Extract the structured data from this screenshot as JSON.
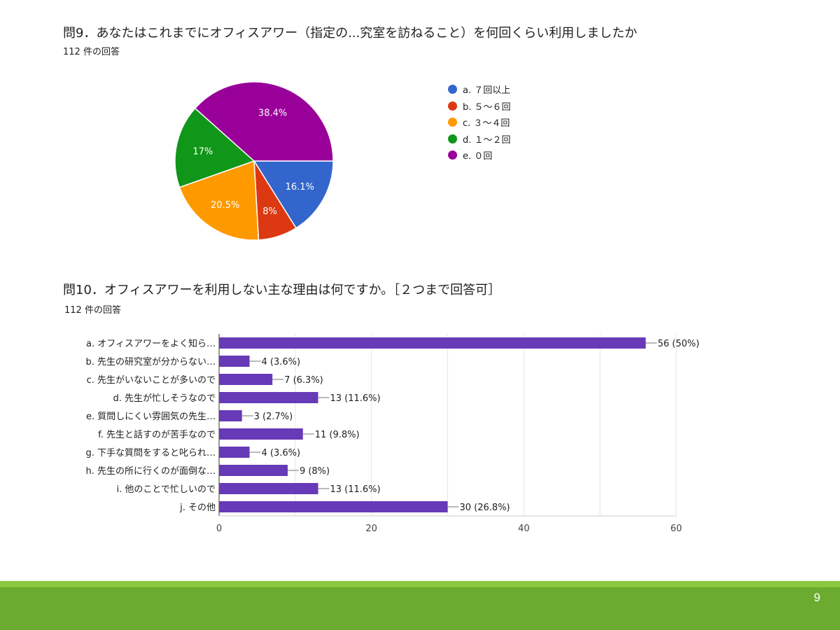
{
  "q9": {
    "title": "問9．あなたはこれまでにオフィスアワー（指定の...究室を訪ねること）を何回くらい利用しましたか",
    "count": "112 件の回答"
  },
  "q10": {
    "title": "問10．オフィスアワーを利用しない主な理由は何ですか。［２つまで回答可］",
    "count": "112 件の回答"
  },
  "page_number": "9",
  "chart_data": [
    {
      "type": "pie",
      "labels": [
        "a. ７回以上",
        "b. ５～６回",
        "c. ３～４回",
        "d. １～２回",
        "e. ０回"
      ],
      "values": [
        16.1,
        8,
        20.5,
        17,
        38.4
      ],
      "value_labels": [
        "16.1%",
        "8%",
        "20.5%",
        "17%",
        "38.4%"
      ],
      "colors": [
        "#3366cc",
        "#dc3912",
        "#ff9900",
        "#109618",
        "#990099"
      ],
      "legend_position": "right"
    },
    {
      "type": "bar",
      "orientation": "horizontal",
      "categories": [
        "a. オフィスアワーをよく知ら…",
        "b. 先生の研究室が分からない…",
        "c. 先生がいないことが多いので",
        "d. 先生が忙しそうなので",
        "e. 質問しにくい雰囲気の先生…",
        "f. 先生と話すのが苦手なので",
        "g. 下手な質問をすると叱られ…",
        "h. 先生の所に行くのが面倒な…",
        "i. 他のことで忙しいので",
        "j. その他"
      ],
      "values": [
        56,
        4,
        7,
        13,
        3,
        11,
        4,
        9,
        13,
        30
      ],
      "value_labels": [
        "56 (50%)",
        "4 (3.6%)",
        "7 (6.3%)",
        "13 (11.6%)",
        "3 (2.7%)",
        "11 (9.8%)",
        "4 (3.6%)",
        "9 (8%)",
        "13 (11.6%)",
        "30 (26.8%)"
      ],
      "xlim": [
        0,
        60
      ],
      "xticks": [
        0,
        20,
        40,
        60
      ],
      "color": "#673ab7",
      "grid": true
    }
  ]
}
